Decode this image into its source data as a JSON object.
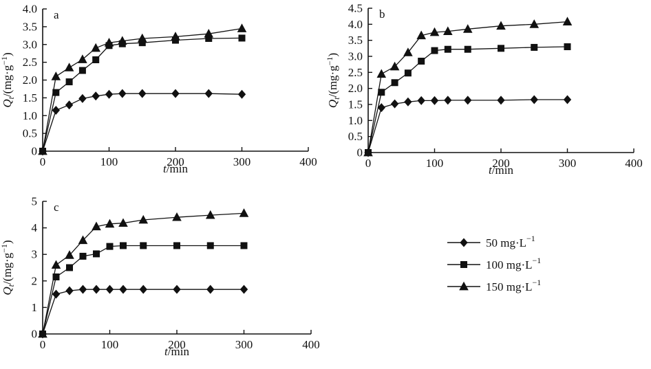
{
  "figure": {
    "background": "#ffffff",
    "ink": "#111111",
    "description_visible_text_only": true
  },
  "axis_labels": {
    "x": {
      "italic": "t",
      "rest": "/min"
    },
    "y": {
      "symbol": "Q",
      "sub": "t",
      "mid": "/(mg·g",
      "sup": "−1",
      "end": ")"
    }
  },
  "legend": {
    "position": "bottom-right",
    "items": [
      {
        "label": "50 mg·L⁻¹",
        "base": "50 mg·L",
        "sup": "−1",
        "marker": "diamond"
      },
      {
        "label": "100 mg·L⁻¹",
        "base": "100 mg·L",
        "sup": "−1",
        "marker": "square"
      },
      {
        "label": "150 mg·L⁻¹",
        "base": "150 mg·L",
        "sup": "−1",
        "marker": "triangle"
      }
    ]
  },
  "chart_data": [
    {
      "id": "a",
      "type": "line",
      "panel_label": "a",
      "xlabel": "t/min",
      "ylabel": "Qt/(mg·g−1)",
      "xlim": [
        0,
        400
      ],
      "ylim": [
        0,
        4.0
      ],
      "xticks": [
        0,
        100,
        200,
        300,
        400
      ],
      "yticks": [
        "0",
        "0.5",
        "1.0",
        "1.5",
        "2.0",
        "2.5",
        "3.0",
        "3.5",
        "4.0"
      ],
      "x": [
        0,
        20,
        40,
        60,
        80,
        100,
        120,
        150,
        200,
        250,
        300
      ],
      "series": [
        {
          "name": "50 mg·L⁻¹",
          "marker": "diamond",
          "values": [
            0,
            1.15,
            1.3,
            1.48,
            1.55,
            1.6,
            1.62,
            1.62,
            1.62,
            1.62,
            1.6
          ]
        },
        {
          "name": "100 mg·L⁻¹",
          "marker": "square",
          "values": [
            0,
            1.65,
            1.95,
            2.27,
            2.57,
            2.97,
            3.02,
            3.05,
            3.12,
            3.17,
            3.18
          ]
        },
        {
          "name": "150 mg·L⁻¹",
          "marker": "triangle",
          "values": [
            0,
            2.1,
            2.35,
            2.58,
            2.9,
            3.05,
            3.1,
            3.17,
            3.22,
            3.3,
            3.45
          ]
        }
      ]
    },
    {
      "id": "b",
      "type": "line",
      "panel_label": "b",
      "xlabel": "t/min",
      "ylabel": "Qt/(mg·g−1)",
      "xlim": [
        0,
        400
      ],
      "ylim": [
        0,
        4.5
      ],
      "xticks": [
        0,
        100,
        200,
        300,
        400
      ],
      "yticks": [
        "0",
        "0.5",
        "1.0",
        "1.5",
        "2.0",
        "2.5",
        "3.0",
        "3.5",
        "4.0",
        "4.5"
      ],
      "x": [
        0,
        20,
        40,
        60,
        80,
        100,
        120,
        150,
        200,
        250,
        300
      ],
      "series": [
        {
          "name": "50 mg·L⁻¹",
          "marker": "diamond",
          "values": [
            0,
            1.4,
            1.52,
            1.58,
            1.62,
            1.62,
            1.63,
            1.63,
            1.63,
            1.65,
            1.65
          ]
        },
        {
          "name": "100 mg·L⁻¹",
          "marker": "square",
          "values": [
            0,
            1.88,
            2.18,
            2.48,
            2.85,
            3.18,
            3.22,
            3.22,
            3.25,
            3.28,
            3.3
          ]
        },
        {
          "name": "150 mg·L⁻¹",
          "marker": "triangle",
          "values": [
            0,
            2.45,
            2.68,
            3.12,
            3.65,
            3.75,
            3.78,
            3.85,
            3.95,
            4.0,
            4.08
          ]
        }
      ]
    },
    {
      "id": "c",
      "type": "line",
      "panel_label": "c",
      "xlabel": "t/min",
      "ylabel": "Qt/(mg·g−1)",
      "xlim": [
        0,
        400
      ],
      "ylim": [
        0,
        5
      ],
      "xticks": [
        0,
        100,
        200,
        300,
        400
      ],
      "yticks": [
        "0",
        "1",
        "2",
        "3",
        "4",
        "5"
      ],
      "x": [
        0,
        20,
        40,
        60,
        80,
        100,
        120,
        150,
        200,
        250,
        300
      ],
      "series": [
        {
          "name": "50 mg·L⁻¹",
          "marker": "diamond",
          "values": [
            0,
            1.5,
            1.63,
            1.68,
            1.68,
            1.68,
            1.68,
            1.68,
            1.68,
            1.68,
            1.68
          ]
        },
        {
          "name": "100 mg·L⁻¹",
          "marker": "square",
          "values": [
            0,
            2.15,
            2.5,
            2.93,
            3.02,
            3.3,
            3.33,
            3.33,
            3.33,
            3.33,
            3.33
          ]
        },
        {
          "name": "150 mg·L⁻¹",
          "marker": "triangle",
          "values": [
            0,
            2.6,
            2.97,
            3.53,
            4.05,
            4.15,
            4.18,
            4.3,
            4.4,
            4.48,
            4.55
          ]
        }
      ]
    }
  ]
}
